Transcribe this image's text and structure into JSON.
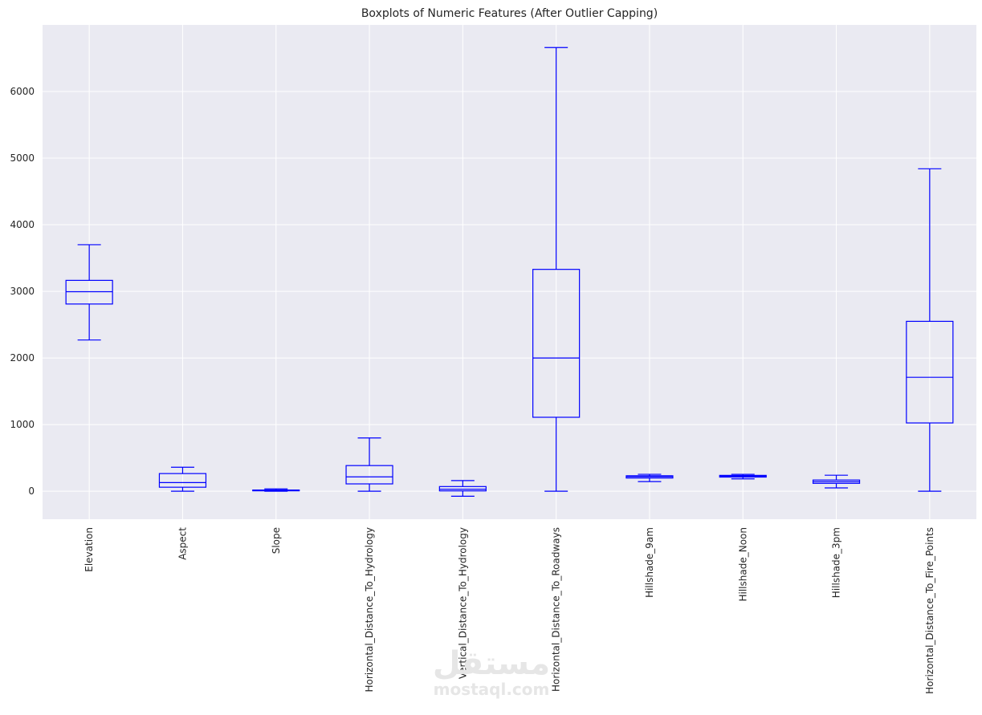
{
  "chart_data": {
    "type": "boxplot",
    "title": "Boxplots of Numeric Features (After Outlier Capping)",
    "xlabel": "",
    "ylabel": "",
    "ylim": [
      -420,
      7000
    ],
    "yticks": [
      0,
      1000,
      2000,
      3000,
      4000,
      5000,
      6000
    ],
    "grid": true,
    "colors": {
      "box": "#0000ff",
      "plot_background": "#eaeaf2",
      "grid": "#ffffff",
      "text": "#262626"
    },
    "categories": [
      "Elevation",
      "Aspect",
      "Slope",
      "Horizontal_Distance_To_Hydrology",
      "Vertical_Distance_To_Hydrology",
      "Horizontal_Distance_To_Roadways",
      "Hillshade_9am",
      "Hillshade_Noon",
      "Hillshade_3pm",
      "Horizontal_Distance_To_Fire_Points"
    ],
    "boxes": [
      {
        "whislo": 2270,
        "q1": 2810,
        "med": 2995,
        "q3": 3165,
        "whishi": 3700
      },
      {
        "whislo": 0,
        "q1": 60,
        "med": 130,
        "q3": 265,
        "whishi": 360
      },
      {
        "whislo": 0,
        "q1": 9,
        "med": 13,
        "q3": 18,
        "whishi": 35
      },
      {
        "whislo": 0,
        "q1": 110,
        "med": 215,
        "q3": 385,
        "whishi": 800
      },
      {
        "whislo": -75,
        "q1": 5,
        "med": 30,
        "q3": 70,
        "whishi": 160
      },
      {
        "whislo": 0,
        "q1": 1110,
        "med": 2000,
        "q3": 3330,
        "whishi": 6660
      },
      {
        "whislo": 145,
        "q1": 198,
        "med": 218,
        "q3": 232,
        "whishi": 254
      },
      {
        "whislo": 185,
        "q1": 212,
        "med": 226,
        "q3": 238,
        "whishi": 254
      },
      {
        "whislo": 50,
        "q1": 118,
        "med": 142,
        "q3": 168,
        "whishi": 240
      },
      {
        "whislo": 0,
        "q1": 1025,
        "med": 1710,
        "q3": 2550,
        "whishi": 4840
      }
    ]
  },
  "watermark": {
    "arabic": "مستقل",
    "latin": "mostaql.com"
  }
}
